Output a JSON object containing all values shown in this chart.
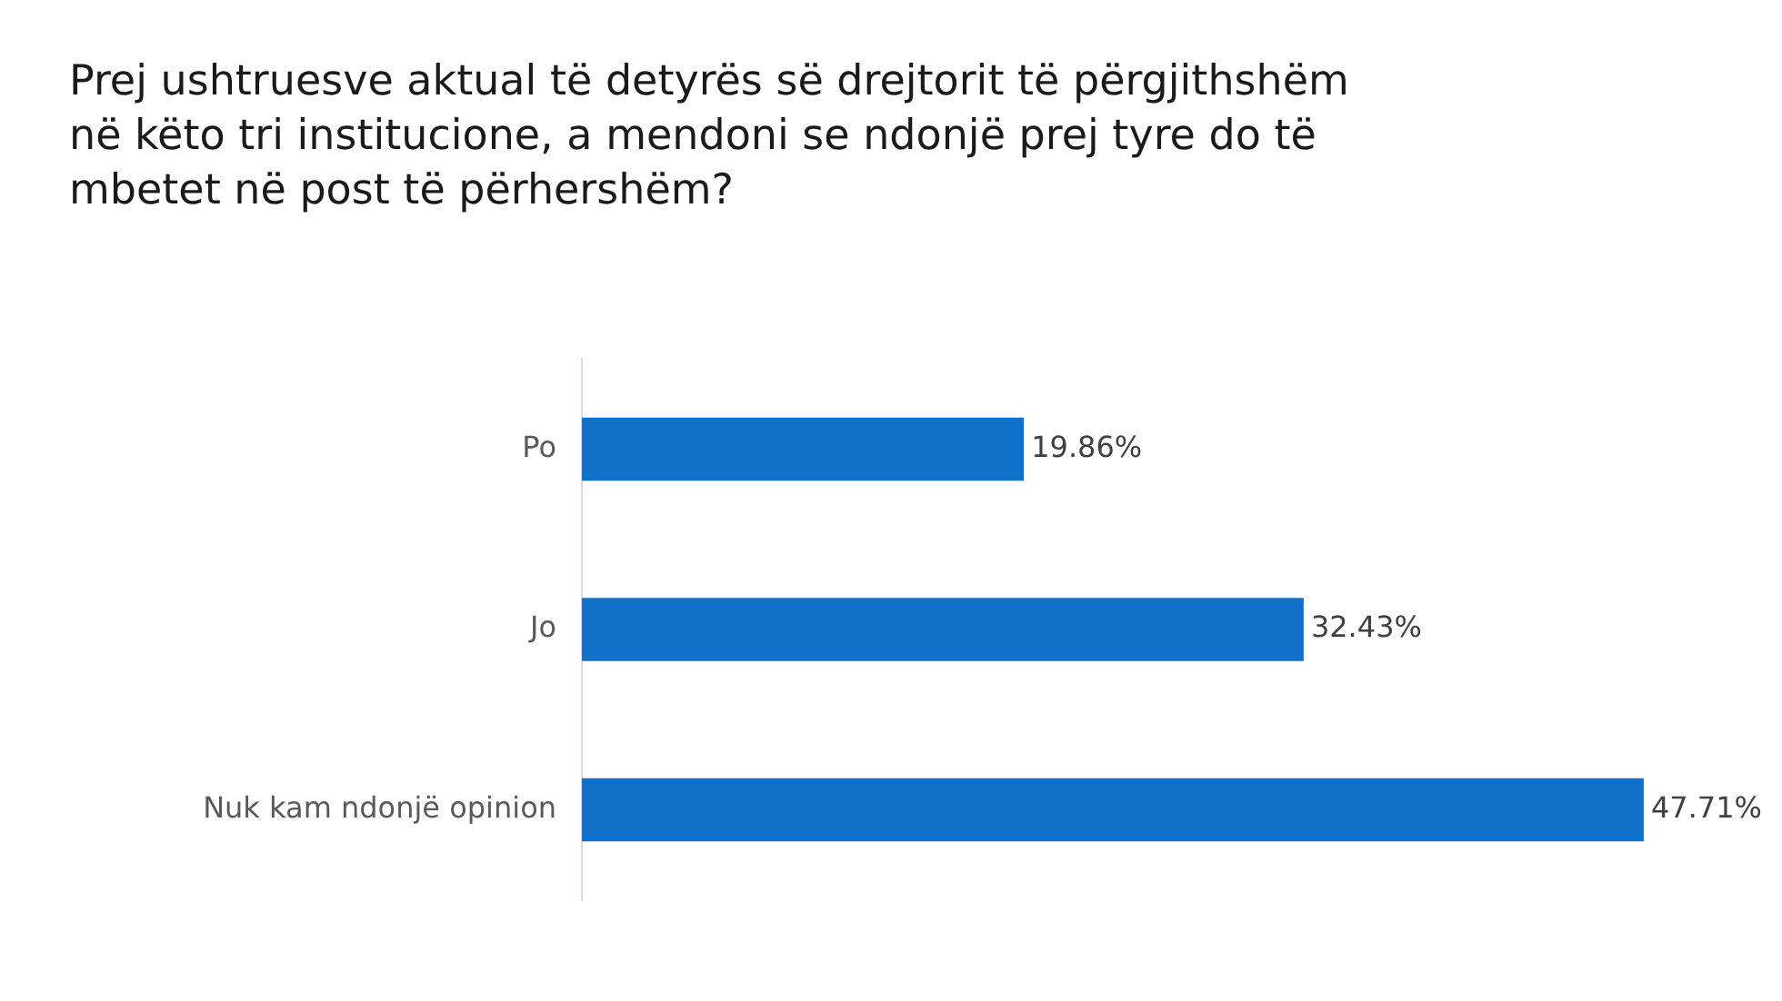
{
  "chart_data": {
    "type": "bar",
    "orientation": "horizontal",
    "title": "Prej ushtruesve aktual të detyrës së drejtorit të përgjithshëm në këto tri institucione, a mendoni se ndonjë prej tyre do të mbetet në post të përhershëm?",
    "categories": [
      "Po",
      "Jo",
      "Nuk kam ndonjë opinion"
    ],
    "values": [
      19.86,
      32.43,
      47.71
    ],
    "value_labels": [
      "19.86%",
      "32.43%",
      "47.71%"
    ],
    "color": "#1170c8",
    "grid": false,
    "legend": false,
    "tick_labels": "y"
  }
}
